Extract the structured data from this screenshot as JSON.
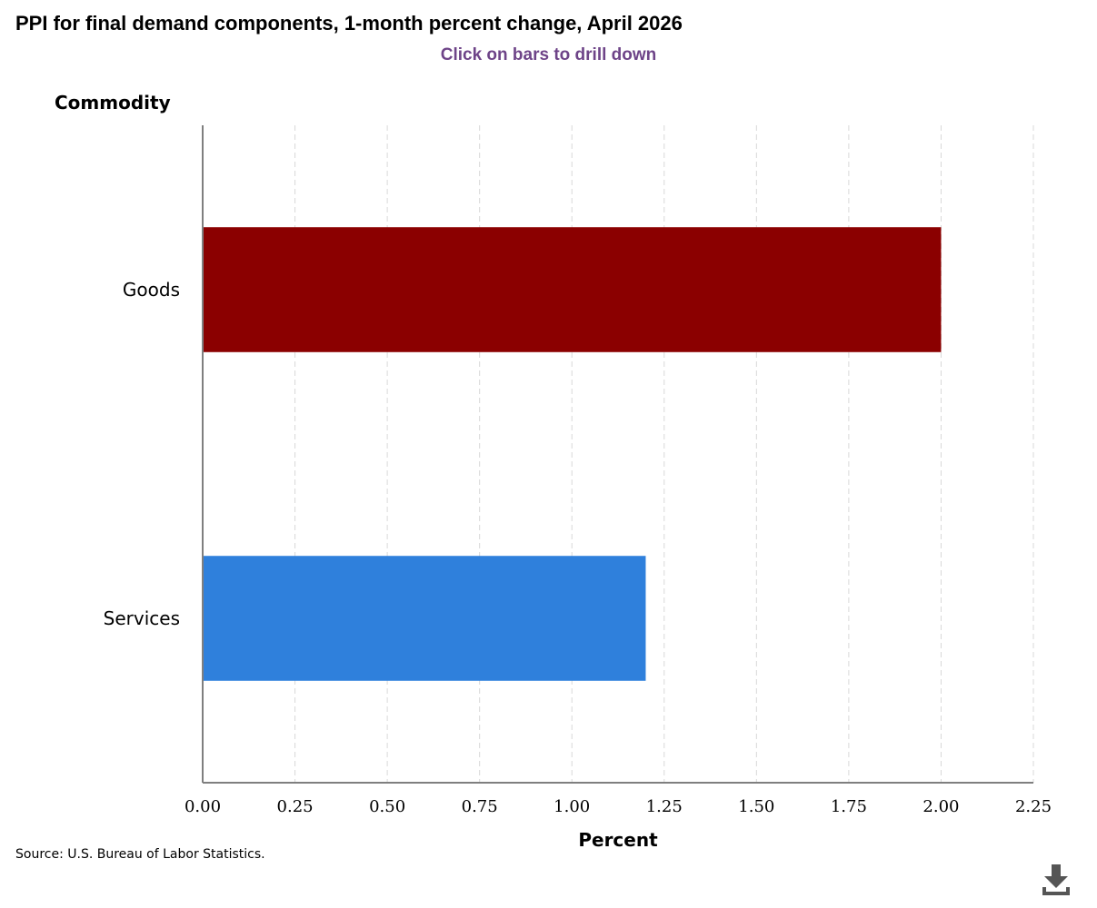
{
  "header": {
    "title": "PPI for final demand components, 1-month percent change, April 2026",
    "subtitle": "Click on bars to drill down"
  },
  "footer": {
    "source": "Source: U.S. Bureau of Labor Statistics."
  },
  "toolbar": {
    "download_icon": "download-icon"
  },
  "chart_data": {
    "type": "bar",
    "orientation": "horizontal",
    "title": "PPI for final demand components, 1-month percent change, April 2026",
    "subtitle": "Click on bars to drill down",
    "ylabel": "Commodity",
    "xlabel": "Percent",
    "categories": [
      "Goods",
      "Services"
    ],
    "values": [
      2.0,
      1.2
    ],
    "colors": [
      "#8b0000",
      "#2f80dc"
    ],
    "xlim": [
      0,
      2.25
    ],
    "xticks": [
      0,
      0.25,
      0.5,
      0.75,
      1.0,
      1.25,
      1.5,
      1.75,
      2.0,
      2.25
    ],
    "xtick_labels": [
      "0.00",
      "0.25",
      "0.50",
      "0.75",
      "1.00",
      "1.25",
      "1.50",
      "1.75",
      "2.00",
      "2.25"
    ],
    "grid": true,
    "legend": "none"
  }
}
